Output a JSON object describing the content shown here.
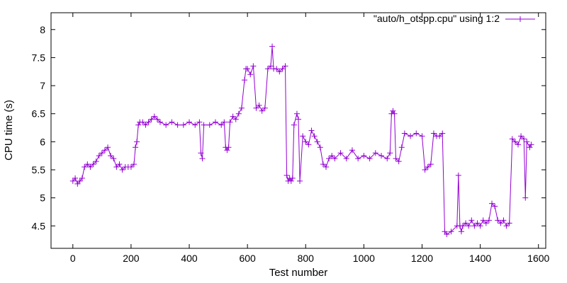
{
  "chart_data": {
    "type": "line",
    "title": "",
    "xlabel": "Test number",
    "ylabel": "CPU time (s)",
    "xlim": [
      -75,
      1625
    ],
    "ylim": [
      4.1,
      8.3
    ],
    "x_ticks": [
      0,
      200,
      400,
      600,
      800,
      1000,
      1200,
      1400,
      1600
    ],
    "y_ticks": [
      4.5,
      5,
      5.5,
      6,
      6.5,
      7,
      7.5,
      8
    ],
    "x_tick_labels": [
      "0",
      "200",
      "400",
      "600",
      "800",
      "1000",
      "1200",
      "1400",
      "1600"
    ],
    "y_tick_labels": [
      "4.5",
      "5",
      "5.5",
      "6",
      "6.5",
      "7",
      "7.5",
      "8"
    ],
    "grid": false,
    "legend_position": "top-right",
    "series": [
      {
        "name": "\"auto/h_otspp.cpu\" using 1:2",
        "color": "#9400d3",
        "marker": "plus",
        "x": [
          0,
          8,
          16,
          24,
          32,
          40,
          50,
          60,
          70,
          80,
          90,
          100,
          110,
          120,
          130,
          140,
          150,
          160,
          170,
          180,
          190,
          200,
          210,
          215,
          220,
          225,
          230,
          240,
          250,
          260,
          270,
          280,
          290,
          300,
          320,
          340,
          360,
          380,
          400,
          420,
          435,
          440,
          445,
          450,
          470,
          490,
          510,
          520,
          525,
          530,
          535,
          540,
          550,
          560,
          570,
          580,
          590,
          595,
          600,
          610,
          620,
          630,
          640,
          650,
          660,
          670,
          680,
          685,
          690,
          700,
          710,
          720,
          730,
          735,
          740,
          745,
          750,
          755,
          760,
          770,
          775,
          780,
          790,
          800,
          810,
          820,
          830,
          840,
          850,
          860,
          870,
          880,
          890,
          900,
          920,
          940,
          960,
          980,
          1000,
          1020,
          1040,
          1060,
          1080,
          1090,
          1095,
          1100,
          1105,
          1110,
          1120,
          1130,
          1140,
          1160,
          1180,
          1200,
          1210,
          1220,
          1230,
          1240,
          1250,
          1260,
          1270,
          1278,
          1285,
          1300,
          1320,
          1325,
          1330,
          1335,
          1340,
          1350,
          1360,
          1370,
          1380,
          1390,
          1400,
          1410,
          1420,
          1430,
          1440,
          1450,
          1460,
          1470,
          1480,
          1490,
          1500,
          1510,
          1520,
          1530,
          1540,
          1550,
          1555,
          1560,
          1570,
          1575
        ],
        "y": [
          5.3,
          5.35,
          5.25,
          5.3,
          5.35,
          5.55,
          5.6,
          5.55,
          5.6,
          5.65,
          5.75,
          5.8,
          5.85,
          5.9,
          5.75,
          5.7,
          5.55,
          5.6,
          5.5,
          5.55,
          5.55,
          5.55,
          5.6,
          5.9,
          6.0,
          6.3,
          6.35,
          6.35,
          6.3,
          6.35,
          6.4,
          6.45,
          6.4,
          6.35,
          6.3,
          6.35,
          6.3,
          6.3,
          6.35,
          6.3,
          6.35,
          5.8,
          5.7,
          6.3,
          6.3,
          6.35,
          6.3,
          6.35,
          5.9,
          5.85,
          5.9,
          6.35,
          6.45,
          6.4,
          6.5,
          6.6,
          7.1,
          7.3,
          7.3,
          7.2,
          7.35,
          6.6,
          6.65,
          6.55,
          6.6,
          7.3,
          7.35,
          7.7,
          7.3,
          7.3,
          7.25,
          7.3,
          7.35,
          5.4,
          5.3,
          5.35,
          5.3,
          5.35,
          6.3,
          6.5,
          6.4,
          5.3,
          6.1,
          6.0,
          5.95,
          6.2,
          6.1,
          6.0,
          5.9,
          5.6,
          5.55,
          5.7,
          5.75,
          5.7,
          5.8,
          5.7,
          5.85,
          5.7,
          5.75,
          5.7,
          5.8,
          5.75,
          5.7,
          5.8,
          6.5,
          6.55,
          6.5,
          5.7,
          5.65,
          5.9,
          6.15,
          6.1,
          6.15,
          6.1,
          5.5,
          5.55,
          5.6,
          6.15,
          6.1,
          6.1,
          6.15,
          4.4,
          4.35,
          4.4,
          4.5,
          5.4,
          4.5,
          4.4,
          4.5,
          4.55,
          4.5,
          4.6,
          4.5,
          4.55,
          4.5,
          4.6,
          4.55,
          4.6,
          4.9,
          4.85,
          4.6,
          4.55,
          4.6,
          4.5,
          4.55,
          6.05,
          6.0,
          5.95,
          6.1,
          6.05,
          5.0,
          6.0,
          5.9,
          5.95
        ]
      }
    ]
  }
}
